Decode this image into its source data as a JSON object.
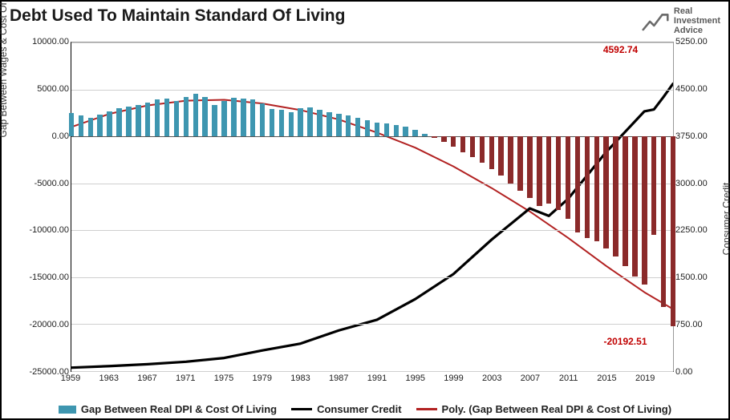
{
  "title": "Debt Used To Maintain Standard Of Living",
  "logo": {
    "line1": "Real",
    "line2": "Investment",
    "line3": "Advice"
  },
  "chart": {
    "type": "combo-bar-line",
    "aspect": "910x524",
    "background_color": "#ffffff",
    "grid_color": "#cfcfcf",
    "y_left": {
      "label": "Gap Between Wages & Cost Of Living",
      "min": -25000,
      "max": 10000,
      "ticks": [
        10000,
        5000,
        0,
        -5000,
        -10000,
        -15000,
        -20000,
        -25000
      ],
      "tick_fmt": ".00"
    },
    "y_right": {
      "label": "Consumer Credit",
      "min": 0,
      "max": 5250,
      "ticks": [
        5250,
        4500,
        3750,
        3000,
        2250,
        1500,
        750,
        0
      ],
      "tick_fmt": ".00"
    },
    "x": {
      "years": [
        1959,
        1963,
        1967,
        1971,
        1975,
        1979,
        1983,
        1987,
        1991,
        1995,
        1999,
        2003,
        2007,
        2011,
        2015,
        2019
      ],
      "min": 1959,
      "max": 2022
    },
    "legend": {
      "items": [
        {
          "kind": "bar",
          "label": "Gap Between Real DPI & Cost Of Living",
          "color": "#3e96b0"
        },
        {
          "kind": "line",
          "label": "Consumer Credit",
          "color": "#000000"
        },
        {
          "kind": "line",
          "label": "Poly. (Gap Between Real DPI & Cost Of Living)",
          "color": "#b22222"
        }
      ]
    },
    "annotations": [
      {
        "text": "4592.74",
        "color": "#c00000",
        "x_year": 2016.5,
        "y_left": 9200
      },
      {
        "text": "-20192.51",
        "color": "#c00000",
        "x_year": 2017,
        "y_left": -21800
      }
    ],
    "series": {
      "bars": {
        "color_pos": "#3e96b0",
        "color_neg": "#8b2a2a",
        "bar_width_frac": 0.55,
        "axis": "left",
        "data": [
          [
            1959,
            2500
          ],
          [
            1960,
            2200
          ],
          [
            1961,
            2000
          ],
          [
            1962,
            2300
          ],
          [
            1963,
            2700
          ],
          [
            1964,
            3000
          ],
          [
            1965,
            3200
          ],
          [
            1966,
            3300
          ],
          [
            1967,
            3600
          ],
          [
            1968,
            3900
          ],
          [
            1969,
            4000
          ],
          [
            1970,
            3800
          ],
          [
            1971,
            4200
          ],
          [
            1972,
            4500
          ],
          [
            1973,
            4200
          ],
          [
            1974,
            3300
          ],
          [
            1975,
            3800
          ],
          [
            1976,
            4100
          ],
          [
            1977,
            4000
          ],
          [
            1978,
            3900
          ],
          [
            1979,
            3500
          ],
          [
            1980,
            2900
          ],
          [
            1981,
            2800
          ],
          [
            1982,
            2600
          ],
          [
            1983,
            3000
          ],
          [
            1984,
            3100
          ],
          [
            1985,
            2800
          ],
          [
            1986,
            2600
          ],
          [
            1987,
            2400
          ],
          [
            1988,
            2200
          ],
          [
            1989,
            2000
          ],
          [
            1990,
            1700
          ],
          [
            1991,
            1500
          ],
          [
            1992,
            1400
          ],
          [
            1993,
            1200
          ],
          [
            1994,
            1000
          ],
          [
            1995,
            700
          ],
          [
            1996,
            300
          ],
          [
            1997,
            -200
          ],
          [
            1998,
            -600
          ],
          [
            1999,
            -1100
          ],
          [
            2000,
            -1700
          ],
          [
            2001,
            -2200
          ],
          [
            2002,
            -2800
          ],
          [
            2003,
            -3500
          ],
          [
            2004,
            -4200
          ],
          [
            2005,
            -5000
          ],
          [
            2006,
            -5800
          ],
          [
            2007,
            -6600
          ],
          [
            2008,
            -7400
          ],
          [
            2009,
            -7200
          ],
          [
            2010,
            -7800
          ],
          [
            2011,
            -8800
          ],
          [
            2012,
            -10200
          ],
          [
            2013,
            -10800
          ],
          [
            2014,
            -11200
          ],
          [
            2015,
            -11900
          ],
          [
            2016,
            -12800
          ],
          [
            2017,
            -13800
          ],
          [
            2018,
            -14900
          ],
          [
            2019,
            -15800
          ],
          [
            2020,
            -10500
          ],
          [
            2021,
            -18200
          ],
          [
            2022,
            -20192
          ]
        ]
      },
      "poly": {
        "color": "#b22222",
        "width": 2,
        "axis": "left",
        "data": [
          [
            1959,
            1000
          ],
          [
            1963,
            2400
          ],
          [
            1967,
            3300
          ],
          [
            1971,
            3800
          ],
          [
            1975,
            3900
          ],
          [
            1979,
            3500
          ],
          [
            1983,
            2800
          ],
          [
            1987,
            1800
          ],
          [
            1991,
            400
          ],
          [
            1995,
            -1200
          ],
          [
            1999,
            -3200
          ],
          [
            2003,
            -5500
          ],
          [
            2007,
            -8000
          ],
          [
            2011,
            -10800
          ],
          [
            2015,
            -13800
          ],
          [
            2019,
            -16600
          ],
          [
            2022,
            -18400
          ]
        ]
      },
      "credit": {
        "color": "#000000",
        "width": 3.2,
        "axis": "right",
        "data": [
          [
            1959,
            55
          ],
          [
            1963,
            80
          ],
          [
            1967,
            110
          ],
          [
            1971,
            150
          ],
          [
            1975,
            210
          ],
          [
            1979,
            330
          ],
          [
            1983,
            440
          ],
          [
            1987,
            650
          ],
          [
            1991,
            820
          ],
          [
            1995,
            1150
          ],
          [
            1999,
            1550
          ],
          [
            2003,
            2100
          ],
          [
            2007,
            2600
          ],
          [
            2009,
            2480
          ],
          [
            2011,
            2750
          ],
          [
            2015,
            3500
          ],
          [
            2019,
            4150
          ],
          [
            2020,
            4180
          ],
          [
            2021,
            4380
          ],
          [
            2022,
            4592
          ]
        ]
      }
    }
  }
}
